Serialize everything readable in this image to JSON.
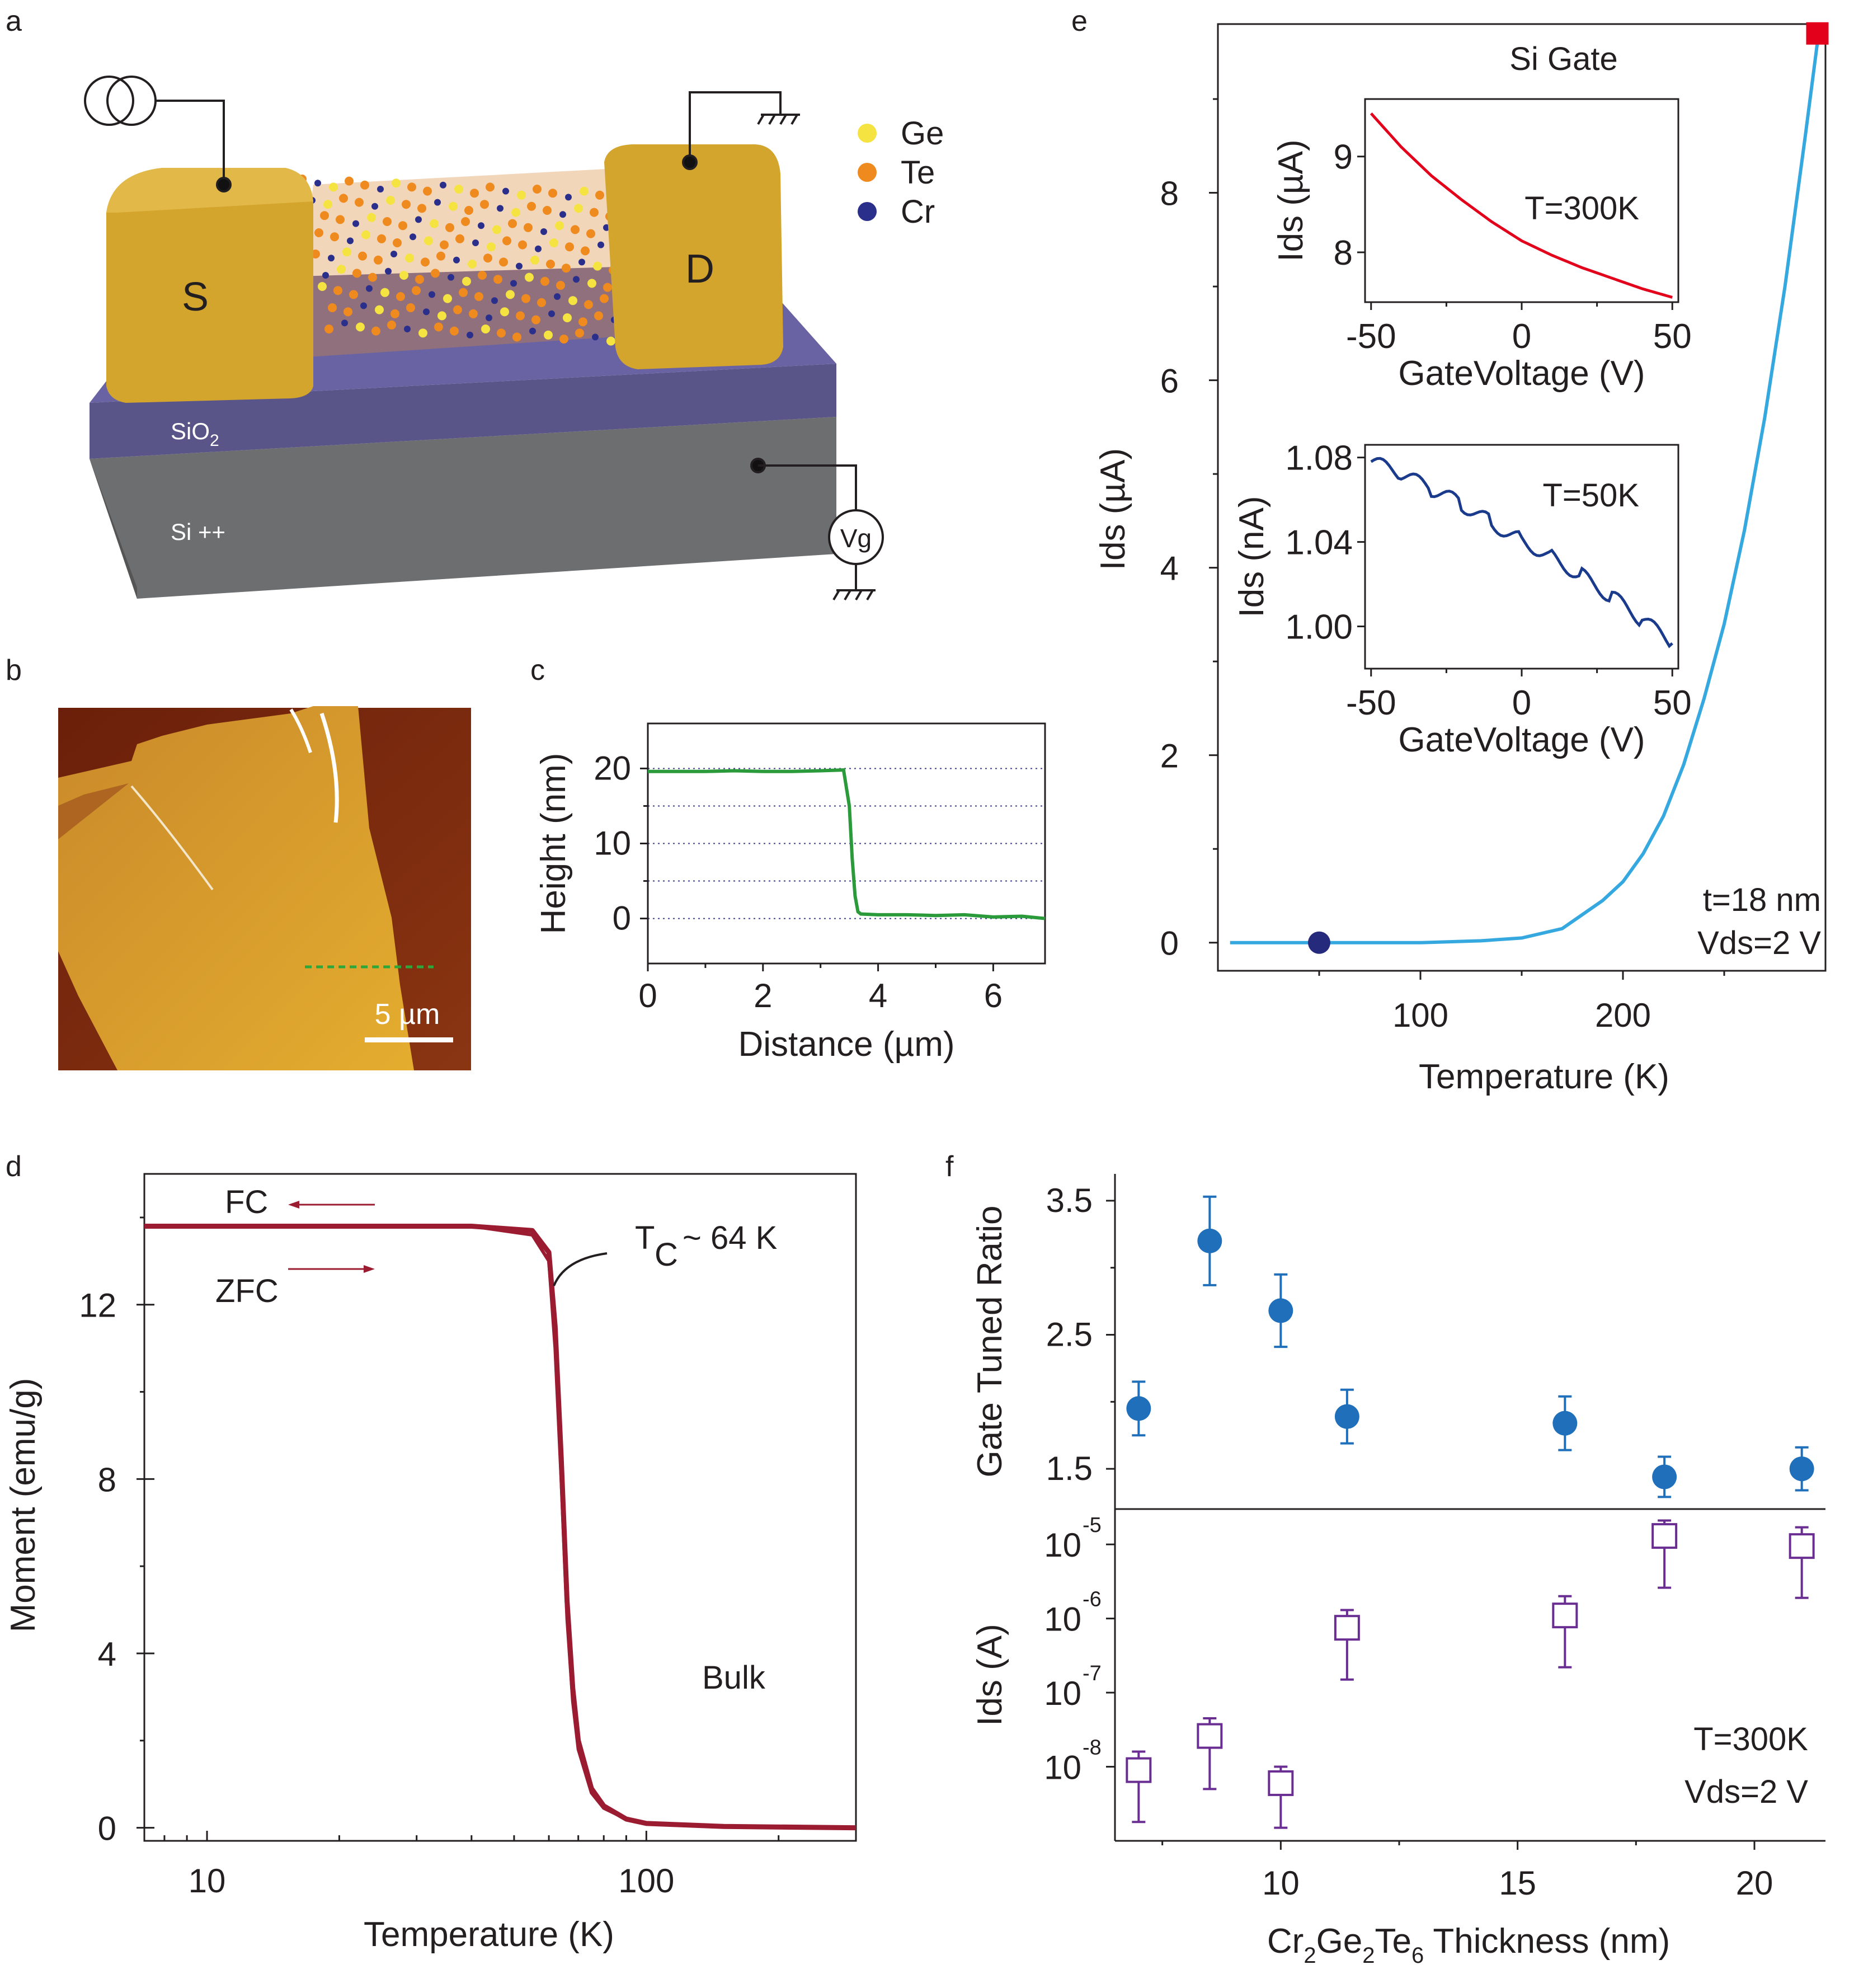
{
  "panels": {
    "a": "a",
    "b": "b",
    "c": "c",
    "d": "d",
    "e": "e",
    "f": "f"
  },
  "device": {
    "source_label": "S",
    "drain_label": "D",
    "oxide_label": "SiO",
    "oxide_sub": "2",
    "substrate_label": "Si ++",
    "gate_meter": "Vg",
    "legend": [
      {
        "label": "Ge",
        "color": "#f5e342"
      },
      {
        "label": "Te",
        "color": "#ef8a1e"
      },
      {
        "label": "Cr",
        "color": "#2b2f8c"
      }
    ]
  },
  "afm": {
    "scale_bar": "5 µm"
  },
  "chart_data": [
    {
      "panel": "c",
      "type": "line",
      "xlabel": "Distance (µm)",
      "ylabel": "Height (nm)",
      "xlim": [
        0,
        6.9
      ],
      "ylim": [
        -6,
        26
      ],
      "xticks": [
        "0",
        "2",
        "4",
        "6"
      ],
      "yticks": [
        "20",
        "10",
        "0"
      ],
      "color": "#2a9a3a",
      "grid": "dotted horizontal",
      "series": [
        {
          "x": [
            0,
            0.5,
            1.0,
            1.5,
            2.0,
            2.5,
            3.0,
            3.4,
            3.5,
            3.55,
            3.6,
            3.65,
            3.7,
            4.0,
            4.5,
            5.0,
            5.5,
            6.0,
            6.5,
            6.9
          ],
          "y": [
            19.6,
            19.6,
            19.6,
            19.7,
            19.6,
            19.6,
            19.7,
            19.8,
            15,
            8,
            3,
            0.9,
            0.6,
            0.5,
            0.5,
            0.4,
            0.5,
            0.2,
            0.3,
            0.0
          ]
        }
      ]
    },
    {
      "panel": "e",
      "type": "line",
      "title": "Si Gate",
      "xlabel": "Temperature (K)",
      "ylabel": "Ids (µA)",
      "xlim": [
        0,
        300
      ],
      "ylim": [
        -0.3,
        9.8
      ],
      "xticks": [
        "100",
        "200"
      ],
      "yticks": [
        "0",
        "2",
        "4",
        "6",
        "8"
      ],
      "color": "#35a8e0",
      "annotations": [
        "t=18 nm",
        "Vds=2 V"
      ],
      "markers": [
        {
          "x": 50,
          "y": 0,
          "color": "#262a7c",
          "shape": "circle"
        },
        {
          "x": 296,
          "y": 9.7,
          "color": "#e3001b",
          "shape": "square"
        }
      ],
      "series": [
        {
          "x": [
            6,
            50,
            100,
            130,
            150,
            170,
            180,
            190,
            200,
            210,
            220,
            230,
            240,
            250,
            260,
            270,
            280,
            290,
            296
          ],
          "y": [
            0,
            0,
            0,
            0.02,
            0.05,
            0.15,
            0.3,
            0.45,
            0.65,
            0.95,
            1.35,
            1.9,
            2.6,
            3.4,
            4.4,
            5.6,
            7.0,
            8.6,
            9.6
          ]
        }
      ]
    },
    {
      "panel": "e-inset-top",
      "type": "line",
      "xlabel": "GateVoltage (V)",
      "ylabel": "Ids (µA)",
      "xlim": [
        -52,
        52
      ],
      "ylim": [
        7.48,
        9.6
      ],
      "xticks": [
        "-50",
        "0",
        "50"
      ],
      "yticks": [
        "9",
        "8"
      ],
      "annotations": [
        "T=300K"
      ],
      "color": "#e3001b",
      "series": [
        {
          "x": [
            -50,
            -40,
            -30,
            -20,
            -10,
            0,
            10,
            20,
            30,
            40,
            50
          ],
          "y": [
            9.45,
            9.1,
            8.8,
            8.55,
            8.32,
            8.12,
            7.97,
            7.84,
            7.73,
            7.62,
            7.53
          ]
        }
      ]
    },
    {
      "panel": "e-inset-bottom",
      "type": "line",
      "xlabel": "GateVoltage (V)",
      "ylabel": "Ids (nA)",
      "xlim": [
        -52,
        52
      ],
      "ylim": [
        0.98,
        1.086
      ],
      "xticks": [
        "-50",
        "0",
        "50"
      ],
      "yticks": [
        "1.08",
        "1.04",
        "1.00"
      ],
      "annotations": [
        "T=50K"
      ],
      "color": "#1a3a8c",
      "series": [
        {
          "x": [
            -50,
            -40,
            -30,
            -20,
            -10,
            0,
            10,
            20,
            30,
            40,
            50
          ],
          "y": [
            1.078,
            1.072,
            1.065,
            1.058,
            1.049,
            1.041,
            1.033,
            1.024,
            1.014,
            1.003,
            0.992
          ]
        }
      ]
    },
    {
      "panel": "d",
      "type": "line",
      "xscale": "log",
      "xlabel": "Temperature (K)",
      "ylabel": "Moment (emu/g)",
      "xlim": [
        7.2,
        300
      ],
      "ylim": [
        -0.3,
        15
      ],
      "xticks": [
        "10",
        "100"
      ],
      "yticks": [
        "0",
        "4",
        "8",
        "12"
      ],
      "color": "#9b1c31",
      "annotations": [
        "FC",
        "ZFC",
        "Bulk",
        "T",
        "C",
        "~  64 K"
      ],
      "series": [
        {
          "name": "FC",
          "x": [
            7.2,
            20,
            40,
            55,
            60,
            62,
            64,
            66,
            68,
            70,
            75,
            80,
            90,
            100,
            150,
            300
          ],
          "y": [
            13.8,
            13.8,
            13.8,
            13.7,
            13.2,
            11.5,
            8.5,
            5.2,
            3.2,
            2.0,
            0.9,
            0.5,
            0.2,
            0.1,
            0.03,
            0.0
          ]
        },
        {
          "name": "ZFC",
          "x": [
            7.2,
            20,
            40,
            55,
            60,
            62,
            64,
            66,
            68,
            70,
            75,
            80,
            90,
            100,
            150,
            300
          ],
          "y": [
            13.8,
            13.8,
            13.8,
            13.6,
            13.0,
            11.0,
            8.0,
            4.8,
            2.9,
            1.8,
            0.8,
            0.45,
            0.2,
            0.1,
            0.03,
            0.0
          ]
        }
      ]
    },
    {
      "panel": "f-top",
      "type": "scatter",
      "ylabel": "Gate Tuned Ratio",
      "xlim": [
        6.5,
        21.5
      ],
      "ylim": [
        1.2,
        3.7
      ],
      "yticks": [
        "3.5",
        "2.5",
        "1.5"
      ],
      "color": "#1f6fba",
      "points": [
        {
          "x": 7.0,
          "y": 1.95,
          "err": 0.2
        },
        {
          "x": 8.5,
          "y": 3.2,
          "err": 0.33
        },
        {
          "x": 10.0,
          "y": 2.68,
          "err": 0.27
        },
        {
          "x": 11.4,
          "y": 1.89,
          "err": 0.2
        },
        {
          "x": 16.0,
          "y": 1.84,
          "err": 0.2
        },
        {
          "x": 18.1,
          "y": 1.44,
          "err": 0.15
        },
        {
          "x": 21.0,
          "y": 1.5,
          "err": 0.16
        }
      ]
    },
    {
      "panel": "f-bottom",
      "type": "scatter",
      "yscale": "log",
      "xlabel": "Cr2Ge2Te6 Thickness (nm)",
      "ylabel": "Ids (A)",
      "xlim": [
        6.5,
        21.5
      ],
      "ylim": [
        1e-09,
        3e-05
      ],
      "xticks": [
        "10",
        "15",
        "20"
      ],
      "yticks": [
        "10",
        "10",
        "10",
        "10"
      ],
      "ytick_exponents": [
        "-8",
        "-7",
        "-6",
        "-5"
      ],
      "annotations": [
        "T=300K",
        "Vds=2 V"
      ],
      "color": "#6a2e93",
      "points": [
        {
          "x": 7.0,
          "y": 9e-09,
          "lo": 1.8e-09,
          "hi": 1.6e-08
        },
        {
          "x": 8.5,
          "y": 2.6e-08,
          "lo": 5e-09,
          "hi": 4.5e-08
        },
        {
          "x": 10.0,
          "y": 6e-09,
          "lo": 1.5e-09,
          "hi": 1e-08
        },
        {
          "x": 11.4,
          "y": 7.5e-07,
          "lo": 1.5e-07,
          "hi": 1.3e-06
        },
        {
          "x": 16.0,
          "y": 1.1e-06,
          "lo": 2.2e-07,
          "hi": 2e-06
        },
        {
          "x": 18.1,
          "y": 1.3e-05,
          "lo": 2.6e-06,
          "hi": 2.1e-05
        },
        {
          "x": 21.0,
          "y": 9.5e-06,
          "lo": 1.9e-06,
          "hi": 1.7e-05
        }
      ]
    }
  ],
  "labels": {
    "f_xlabel_parts": [
      "Cr",
      "2",
      "Ge",
      "2",
      "Te",
      "6",
      " Thickness (nm)"
    ],
    "d_tc": [
      "T",
      "C",
      "~  64 K"
    ]
  }
}
